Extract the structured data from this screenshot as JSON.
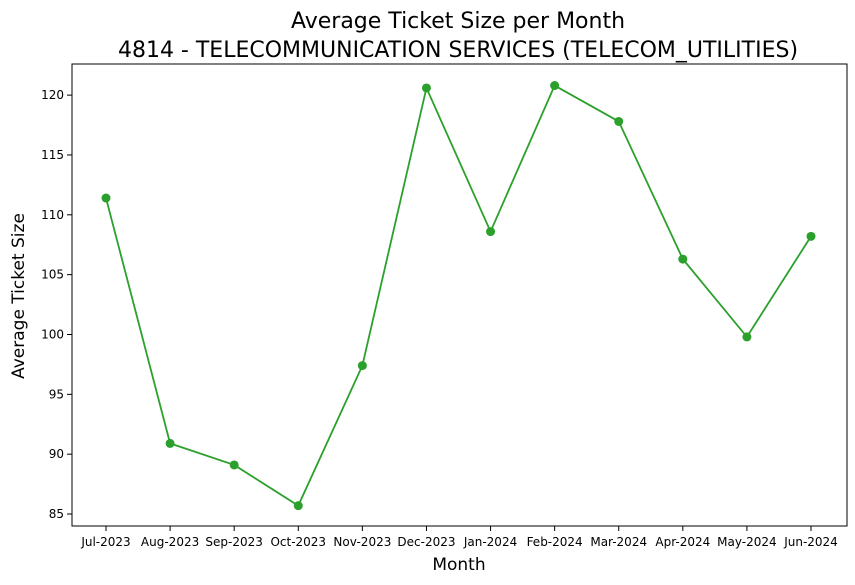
{
  "chart_data": {
    "type": "line",
    "title": "Average Ticket Size per Month",
    "subtitle": "4814 - TELECOMMUNICATION SERVICES (TELECOM_UTILITIES)",
    "xlabel": "Month",
    "ylabel": "Average Ticket Size",
    "categories": [
      "Jul-2023",
      "Aug-2023",
      "Sep-2023",
      "Oct-2023",
      "Nov-2023",
      "Dec-2023",
      "Jan-2024",
      "Feb-2024",
      "Mar-2024",
      "Apr-2024",
      "May-2024",
      "Jun-2024"
    ],
    "series": [
      {
        "values": [
          111.4,
          90.9,
          89.1,
          85.7,
          97.4,
          120.6,
          108.6,
          120.8,
          117.8,
          106.3,
          99.8,
          108.2
        ],
        "color": "#2ca02c"
      }
    ],
    "yticks": [
      85,
      90,
      95,
      100,
      105,
      110,
      115,
      120
    ],
    "ylim": [
      84.0,
      122.6
    ],
    "grid": false,
    "legend": "none"
  }
}
